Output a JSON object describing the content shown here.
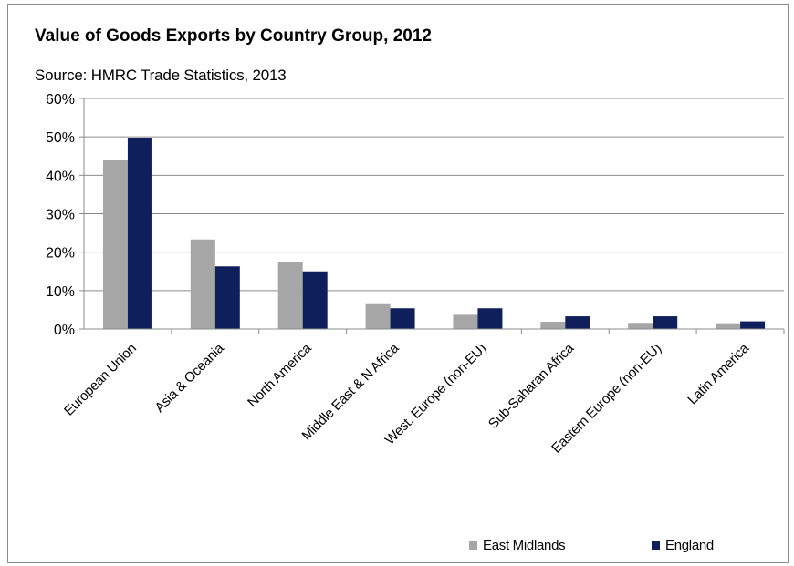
{
  "chart_data": {
    "type": "bar",
    "title": "Value of Goods Exports by Country Group, 2012",
    "subtitle": "Source: HMRC Trade Statistics, 2013",
    "categories": [
      "European Union",
      "Asia & Oceania",
      "North America",
      "Middle East & N Africa",
      "West. Europe (non-EU)",
      "Sub-Saharan Africa",
      "Eastern Europe (non-EU)",
      "Latin America"
    ],
    "series": [
      {
        "name": "East Midlands",
        "color": "#a6a6a6",
        "values": [
          44,
          23.3,
          17.5,
          6.7,
          3.7,
          1.9,
          1.6,
          1.5
        ]
      },
      {
        "name": "England",
        "color": "#0e1f5c",
        "values": [
          49.8,
          16.3,
          15,
          5.4,
          5.4,
          3.3,
          3.3,
          2
        ]
      }
    ],
    "yticks": [
      "0%",
      "10%",
      "20%",
      "30%",
      "40%",
      "50%",
      "60%"
    ],
    "ylim": [
      0,
      60
    ],
    "grid": true,
    "legend_position": "bottom-right"
  }
}
